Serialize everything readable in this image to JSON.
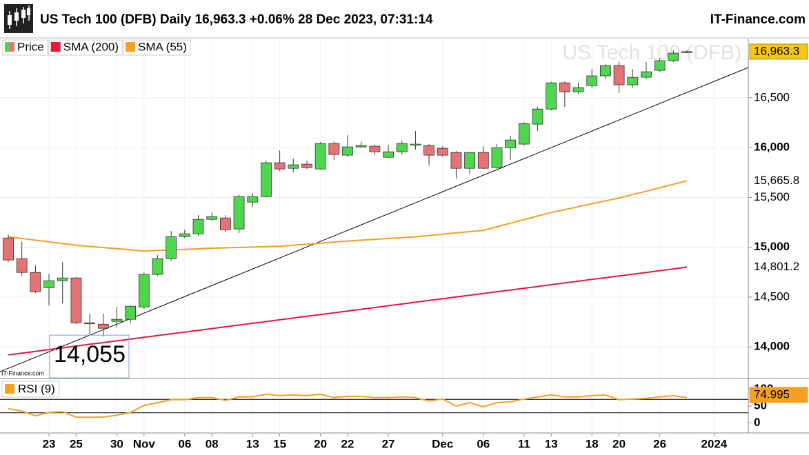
{
  "chart_data": {
    "type": "candlestick",
    "title": "US Tech 100 (DFB) Daily 16,963.3 +0.06% 28 Dec 2023, 07:31:14",
    "source": "IT-Finance.com",
    "watermark": "US Tech 100 (DFB)",
    "credit": "IT-Finance.com",
    "annotation": "14,055",
    "categories": [
      null,
      null,
      null,
      "23",
      null,
      "25",
      null,
      null,
      "30",
      null,
      "Nov",
      null,
      null,
      "06",
      null,
      "08",
      null,
      null,
      "13",
      null,
      "15",
      null,
      null,
      "20",
      null,
      "22",
      null,
      null,
      "27",
      null,
      null,
      null,
      "Dec",
      null,
      null,
      "06",
      null,
      null,
      "11",
      null,
      "13",
      null,
      null,
      "18",
      null,
      "20",
      null,
      null,
      "26",
      null,
      null,
      null,
      "2024"
    ],
    "ohlc": {
      "name": "Price",
      "up_color": "#4fd64f",
      "down_color": "#e57373",
      "last_label": "16,963.3",
      "open": [
        15093,
        14886,
        14747,
        14595,
        14664,
        14692,
        14242,
        14228,
        14256,
        14277,
        14401,
        14727,
        14886,
        15107,
        15135,
        15280,
        15294,
        15183,
        15453,
        15509,
        15848,
        15792,
        15834,
        15785,
        16041,
        15924,
        16007,
        16014,
        15903,
        15958,
        16028,
        16021,
        15993,
        15951,
        15792,
        15951,
        15799,
        15999,
        16035,
        16235,
        16387,
        16650,
        16560,
        16622,
        16720,
        16823,
        16630,
        16706,
        16775,
        16872,
        16955,
        null,
        null
      ],
      "high": [
        15128,
        15059,
        14817,
        14733,
        14851,
        14700,
        14332,
        14332,
        14401,
        14415,
        14747,
        14920,
        15163,
        15176,
        15322,
        15349,
        15322,
        15529,
        15543,
        15868,
        15972,
        15889,
        15868,
        16055,
        16062,
        16124,
        16062,
        16028,
        16028,
        16069,
        16166,
        16035,
        16014,
        15965,
        15951,
        16014,
        16035,
        16118,
        16256,
        16408,
        16660,
        16664,
        16650,
        16789,
        16837,
        16858,
        16789,
        16858,
        16900,
        16976,
        16976,
        null,
        null
      ],
      "low": [
        14851,
        14713,
        14540,
        14415,
        14436,
        14228,
        14125,
        14104,
        14194,
        14242,
        14381,
        14713,
        14865,
        15093,
        15114,
        15266,
        15155,
        15142,
        15405,
        15500,
        15765,
        15751,
        15785,
        15778,
        15875,
        15903,
        16000,
        15924,
        15896,
        15931,
        15979,
        15820,
        15910,
        15688,
        15737,
        15785,
        15785,
        15875,
        16021,
        16166,
        16373,
        16408,
        16540,
        16602,
        16692,
        16547,
        16602,
        16685,
        16761,
        16858,
        16948,
        null,
        null
      ],
      "close": [
        14872,
        14747,
        14554,
        14664,
        14692,
        14242,
        14235,
        14187,
        14277,
        14408,
        14727,
        14886,
        15107,
        15135,
        15280,
        15308,
        15176,
        15509,
        15509,
        15848,
        15785,
        15827,
        15799,
        16041,
        15931,
        16007,
        16021,
        15958,
        15958,
        16041,
        16035,
        15924,
        15924,
        15792,
        15951,
        15792,
        15999,
        16076,
        16242,
        16387,
        16650,
        16560,
        16602,
        16720,
        16823,
        16630,
        16706,
        16761,
        16872,
        16948,
        16963.3,
        null,
        null
      ]
    },
    "series": [
      {
        "name": "SMA (200)",
        "color": "#e8173f",
        "last_label": "14,801.2",
        "values": [
          13920,
          13938,
          13955,
          13973,
          13990,
          14008,
          14026,
          14043,
          14061,
          14078,
          14096,
          14114,
          14131,
          14149,
          14166,
          14184,
          14202,
          14219,
          14237,
          14254,
          14272,
          14290,
          14307,
          14325,
          14342,
          14360,
          14378,
          14395,
          14413,
          14430,
          14448,
          14466,
          14483,
          14501,
          14518,
          14536,
          14554,
          14571,
          14589,
          14606,
          14624,
          14642,
          14659,
          14677,
          14694,
          14712,
          14730,
          14747,
          14765,
          14782,
          14801.2,
          null,
          null
        ]
      },
      {
        "name": "SMA (55)",
        "color": "#f5a020",
        "last_label": "15,665.8",
        "values": [
          15105,
          15088,
          15071,
          15054,
          15037,
          15020,
          15008,
          14997,
          14985,
          14974,
          14962,
          14968,
          14973,
          14979,
          14984,
          14990,
          14994,
          14998,
          15002,
          15006,
          15010,
          15020,
          15031,
          15041,
          15052,
          15062,
          15071,
          15079,
          15088,
          15096,
          15105,
          15118,
          15131,
          15144,
          15157,
          15170,
          15206,
          15242,
          15277,
          15313,
          15349,
          15378,
          15407,
          15437,
          15466,
          15495,
          15529,
          15563,
          15597,
          15632,
          15665.8,
          null,
          null
        ]
      }
    ],
    "trendline": {
      "x": [
        8,
        35
      ],
      "values": [
        14228,
        15723
      ],
      "color": "#000000"
    },
    "ylim": [
      13690,
      17080
    ],
    "yticks": [
      {
        "value": 14000,
        "label": "14,000"
      },
      {
        "value": 14500,
        "label": "14,500"
      },
      {
        "value": 15000,
        "label": "15,000"
      },
      {
        "value": 15500,
        "label": "15,500"
      },
      {
        "value": 16000,
        "label": "16,000"
      },
      {
        "value": 16500,
        "label": "16,500"
      }
    ],
    "grid": true,
    "rsi": {
      "name": "RSI (9)",
      "color": "#f5a020",
      "last_label": "74.995",
      "ylim": [
        -30,
        130
      ],
      "yticks": [
        0,
        50,
        100
      ],
      "levels": [
        30,
        70
      ],
      "values": [
        42,
        35,
        21,
        31,
        33,
        17,
        17,
        17,
        23,
        31,
        52,
        60,
        69,
        69,
        75,
        75,
        67,
        77,
        77,
        85,
        81,
        83,
        81,
        85,
        75,
        79,
        79,
        75,
        75,
        77,
        75,
        65,
        71,
        50,
        60,
        48,
        60,
        63,
        71,
        77,
        83,
        77,
        77,
        81,
        83,
        69,
        71,
        73,
        77,
        81,
        74.995,
        null,
        null
      ]
    }
  }
}
